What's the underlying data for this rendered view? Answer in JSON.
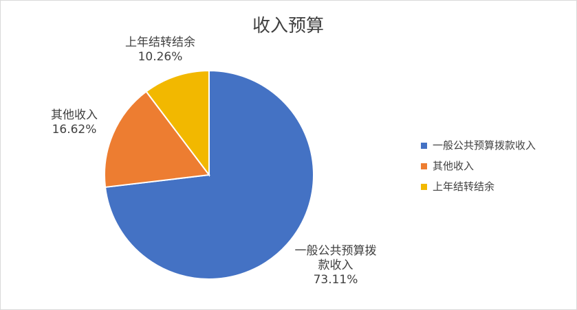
{
  "chart_data": {
    "type": "pie",
    "title": "收入预算",
    "slices": [
      {
        "name": "一般公共预算拨款收入",
        "value": 73.11,
        "label_lines": [
          "一般公共预算拨",
          "款收入"
        ],
        "percent_label": "73.11%",
        "color": "#4472C4"
      },
      {
        "name": "其他收入",
        "value": 16.62,
        "label_lines": [
          "其他收入"
        ],
        "percent_label": "16.62%",
        "color": "#ED7D31"
      },
      {
        "name": "上年结转结余",
        "value": 10.26,
        "label_lines": [
          "上年结转结余"
        ],
        "percent_label": "10.26%",
        "color": "#F2B800"
      }
    ],
    "start_angle_deg": 0,
    "direction": "clockwise",
    "legend_position": "right"
  }
}
